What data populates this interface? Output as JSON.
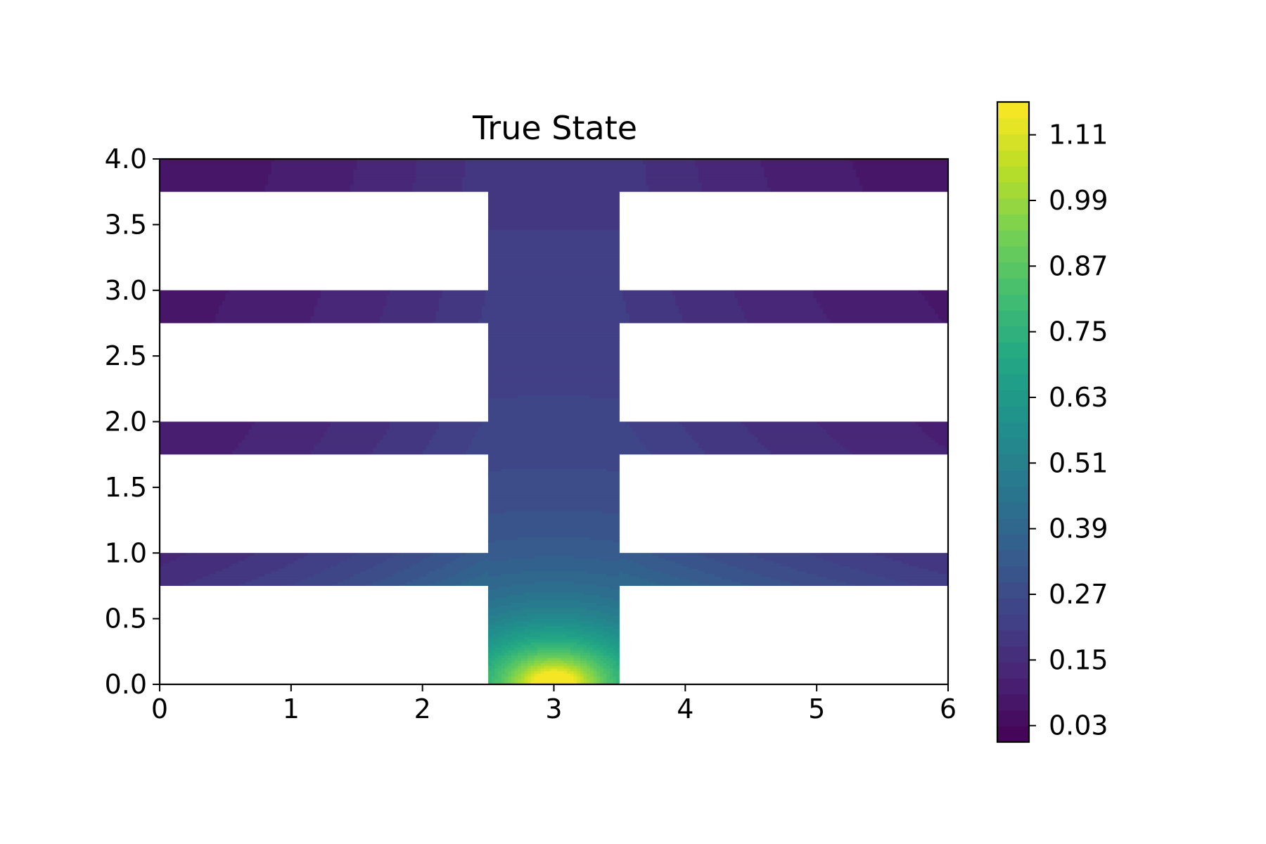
{
  "chart_data": {
    "type": "heatmap",
    "title": "True State",
    "xlabel": "",
    "ylabel": "",
    "xlim": [
      0,
      6
    ],
    "ylim": [
      0,
      4
    ],
    "x_ticks": [
      "0",
      "1",
      "2",
      "3",
      "4",
      "5",
      "6"
    ],
    "y_ticks": [
      "0.0",
      "0.5",
      "1.0",
      "1.5",
      "2.0",
      "2.5",
      "3.0",
      "3.5",
      "4.0"
    ],
    "grid": false,
    "colormap": "viridis",
    "colorbar": {
      "range": [
        0.0,
        1.17
      ],
      "ticks": [
        "0.03",
        "0.15",
        "0.27",
        "0.39",
        "0.51",
        "0.63",
        "0.75",
        "0.87",
        "0.99",
        "1.11"
      ],
      "levels": 40
    },
    "domain": {
      "vertical_channel": {
        "x": [
          2.5,
          3.5
        ],
        "y": [
          0.0,
          4.0
        ]
      },
      "horizontal_channels": [
        {
          "y": [
            0.75,
            1.0
          ],
          "x": [
            0,
            6
          ]
        },
        {
          "y": [
            1.75,
            2.0
          ],
          "x": [
            0,
            6
          ]
        },
        {
          "y": [
            2.75,
            3.0
          ],
          "x": [
            0,
            6
          ]
        },
        {
          "y": [
            3.75,
            4.0
          ],
          "x": [
            0,
            6
          ]
        }
      ]
    },
    "field_samples": [
      {
        "x": 3.0,
        "y": 0.02,
        "value": 1.15
      },
      {
        "x": 3.0,
        "y": 0.5,
        "value": 0.63
      },
      {
        "x": 3.0,
        "y": 0.9,
        "value": 0.45
      },
      {
        "x": 3.0,
        "y": 1.9,
        "value": 0.33
      },
      {
        "x": 3.0,
        "y": 2.9,
        "value": 0.25
      },
      {
        "x": 3.0,
        "y": 3.9,
        "value": 0.2
      },
      {
        "x": 0.1,
        "y": 0.9,
        "value": 0.09
      },
      {
        "x": 0.1,
        "y": 1.9,
        "value": 0.08
      },
      {
        "x": 0.1,
        "y": 2.9,
        "value": 0.06
      },
      {
        "x": 0.1,
        "y": 3.9,
        "value": 0.04
      },
      {
        "x": 5.9,
        "y": 0.9,
        "value": 0.18
      },
      {
        "x": 5.9,
        "y": 1.9,
        "value": 0.15
      },
      {
        "x": 5.9,
        "y": 2.9,
        "value": 0.1
      },
      {
        "x": 5.9,
        "y": 3.9,
        "value": 0.04
      }
    ]
  }
}
